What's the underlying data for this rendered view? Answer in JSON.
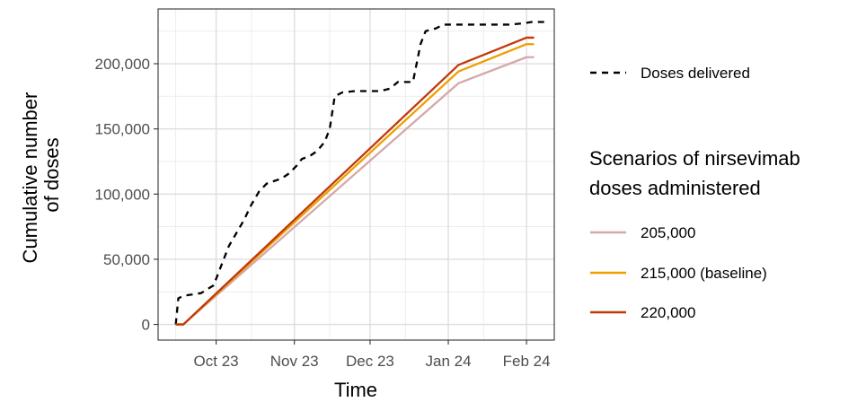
{
  "chart_data": {
    "type": "line",
    "xlabel": "Time",
    "ylabel_lines": [
      "Cumulative number",
      "of doses"
    ],
    "x_ticks": [
      {
        "date": "2023-10-01",
        "label": "Oct 23"
      },
      {
        "date": "2023-11-01",
        "label": "Nov 23"
      },
      {
        "date": "2023-12-01",
        "label": "Dec 23"
      },
      {
        "date": "2024-01-01",
        "label": "Jan 24"
      },
      {
        "date": "2024-02-01",
        "label": "Feb 24"
      }
    ],
    "x_minor_ticks": [
      "2023-09-15",
      "2023-10-15",
      "2023-11-15",
      "2023-12-15",
      "2024-01-15"
    ],
    "xlim": [
      "2023-09-08",
      "2024-02-12"
    ],
    "y_ticks": [
      {
        "value": 0,
        "label": "0"
      },
      {
        "value": 50000,
        "label": "50,000"
      },
      {
        "value": 100000,
        "label": "100,000"
      },
      {
        "value": 150000,
        "label": "150,000"
      },
      {
        "value": 200000,
        "label": "200,000"
      }
    ],
    "ylim": [
      -12000,
      242000
    ],
    "grid": true,
    "legend_position": "right",
    "series": [
      {
        "name": "Doses delivered",
        "style": "dashed",
        "color": "#000000",
        "points": [
          [
            "2023-09-15",
            0
          ],
          [
            "2023-09-16",
            20000
          ],
          [
            "2023-09-18",
            22000
          ],
          [
            "2023-09-25",
            24000
          ],
          [
            "2023-09-30",
            30000
          ],
          [
            "2023-10-03",
            45000
          ],
          [
            "2023-10-06",
            60000
          ],
          [
            "2023-10-09",
            70000
          ],
          [
            "2023-10-12",
            80000
          ],
          [
            "2023-10-15",
            92000
          ],
          [
            "2023-10-18",
            102000
          ],
          [
            "2023-10-21",
            108000
          ],
          [
            "2023-10-24",
            110000
          ],
          [
            "2023-10-27",
            112000
          ],
          [
            "2023-10-30",
            116000
          ],
          [
            "2023-11-02",
            122000
          ],
          [
            "2023-11-04",
            127000
          ],
          [
            "2023-11-07",
            129000
          ],
          [
            "2023-11-10",
            133000
          ],
          [
            "2023-11-13",
            140000
          ],
          [
            "2023-11-15",
            150000
          ],
          [
            "2023-11-17",
            175000
          ],
          [
            "2023-11-20",
            178000
          ],
          [
            "2023-11-25",
            179000
          ],
          [
            "2023-12-05",
            179000
          ],
          [
            "2023-12-09",
            181000
          ],
          [
            "2023-12-12",
            186000
          ],
          [
            "2023-12-18",
            186000
          ],
          [
            "2023-12-21",
            215000
          ],
          [
            "2023-12-23",
            225000
          ],
          [
            "2023-12-27",
            227000
          ],
          [
            "2023-12-30",
            230000
          ],
          [
            "2024-01-10",
            230000
          ],
          [
            "2024-01-25",
            230000
          ],
          [
            "2024-01-31",
            231000
          ],
          [
            "2024-02-03",
            232000
          ],
          [
            "2024-02-08",
            232000
          ]
        ]
      },
      {
        "name": "205,000",
        "style": "solid",
        "color": "#d4a8a8",
        "points": [
          [
            "2023-09-15",
            0
          ],
          [
            "2023-09-18",
            0
          ],
          [
            "2024-01-05",
            185000
          ],
          [
            "2024-02-01",
            205000
          ],
          [
            "2024-02-04",
            205000
          ]
        ]
      },
      {
        "name": "215,000 (baseline)",
        "style": "solid",
        "color": "#ee9f00",
        "points": [
          [
            "2023-09-15",
            0
          ],
          [
            "2023-09-18",
            0
          ],
          [
            "2024-01-05",
            194000
          ],
          [
            "2024-02-01",
            215000
          ],
          [
            "2024-02-04",
            215000
          ]
        ]
      },
      {
        "name": "220,000",
        "style": "solid",
        "color": "#c0390b",
        "points": [
          [
            "2023-09-15",
            0
          ],
          [
            "2023-09-18",
            0
          ],
          [
            "2024-01-05",
            199000
          ],
          [
            "2024-02-01",
            220000
          ],
          [
            "2024-02-04",
            220000
          ]
        ]
      }
    ],
    "legend": {
      "delivered_label": "Doses delivered",
      "scenario_title_lines": [
        "Scenarios of nirsevimab",
        "doses administered"
      ],
      "scenario_labels": [
        "205,000",
        "215,000 (baseline)",
        "220,000"
      ]
    }
  }
}
